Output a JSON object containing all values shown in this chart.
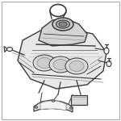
{
  "background_color": "#ffffff",
  "dark_color": "#3a3a3a",
  "mid_color": "#888888",
  "light_color": "#bbbbbb",
  "fill_engine": "#e8e8e8",
  "fill_manifold": "#d4d4d4",
  "fill_throttle": "#c8c8c8",
  "fill_light": "#f0f0f0",
  "figsize": [
    1.5,
    1.5
  ],
  "dpi": 100
}
